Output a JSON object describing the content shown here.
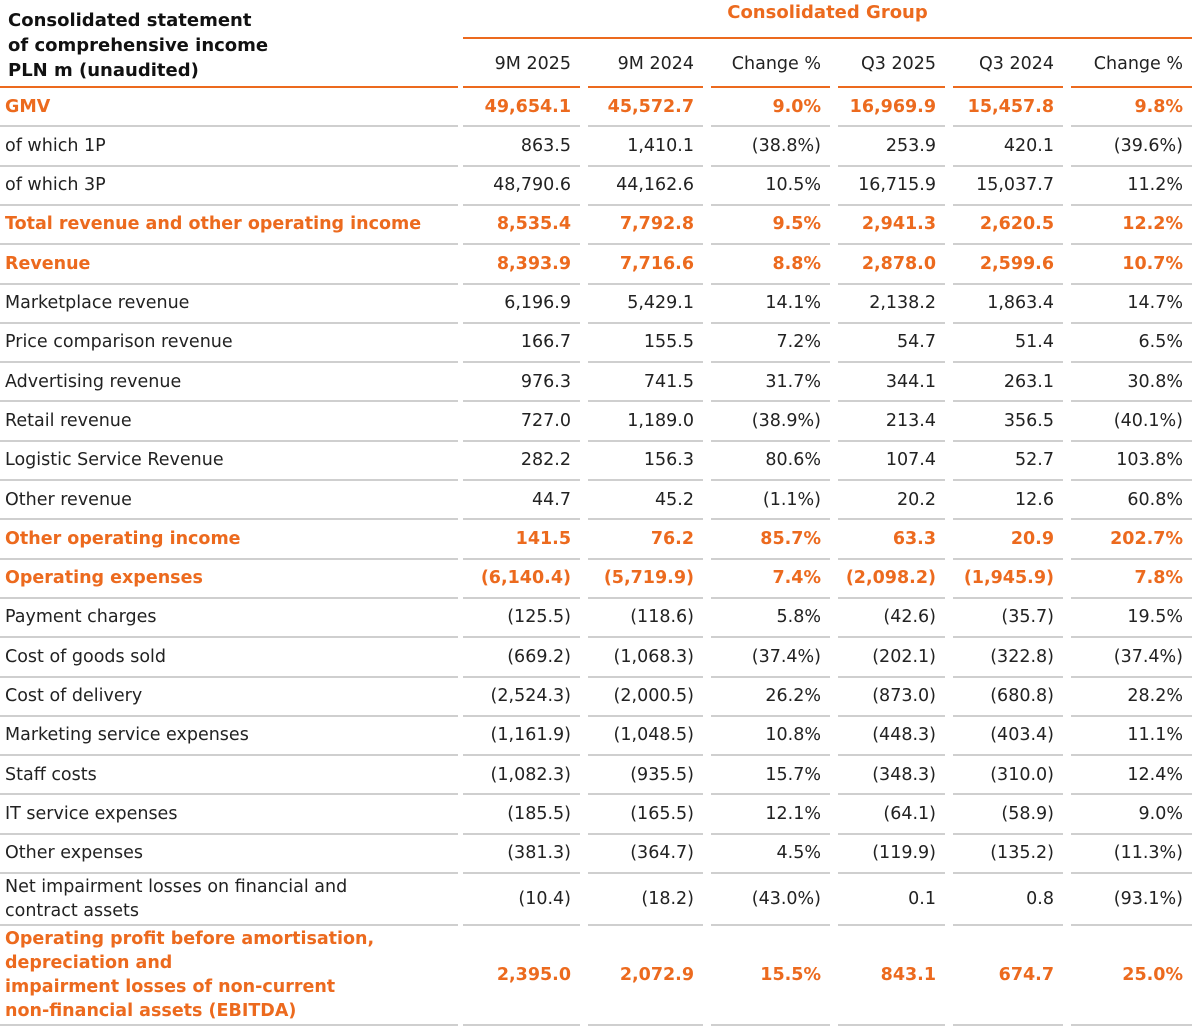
{
  "title": "Consolidated statement\nof comprehensive income\nPLN m (unaudited)",
  "group": "Consolidated Group",
  "columns": [
    "9M 2025",
    "9M 2024",
    "Change %",
    "Q3 2025",
    "Q3 2024",
    "Change %"
  ],
  "rows": [
    {
      "label": "GMV",
      "highlight": true,
      "values": [
        "49,654.1",
        "45,572.7",
        "9.0%",
        "16,969.9",
        "15,457.8",
        "9.8%"
      ]
    },
    {
      "label": "of which 1P",
      "highlight": false,
      "values": [
        "863.5",
        "1,410.1",
        "(38.8%)",
        "253.9",
        "420.1",
        "(39.6%)"
      ]
    },
    {
      "label": "of which 3P",
      "highlight": false,
      "values": [
        "48,790.6",
        "44,162.6",
        "10.5%",
        "16,715.9",
        "15,037.7",
        "11.2%"
      ]
    },
    {
      "label": "Total revenue and other operating income",
      "highlight": true,
      "values": [
        "8,535.4",
        "7,792.8",
        "9.5%",
        "2,941.3",
        "2,620.5",
        "12.2%"
      ]
    },
    {
      "label": "Revenue",
      "highlight": true,
      "values": [
        "8,393.9",
        "7,716.6",
        "8.8%",
        "2,878.0",
        "2,599.6",
        "10.7%"
      ]
    },
    {
      "label": "Marketplace revenue",
      "highlight": false,
      "values": [
        "6,196.9",
        "5,429.1",
        "14.1%",
        "2,138.2",
        "1,863.4",
        "14.7%"
      ]
    },
    {
      "label": "Price comparison revenue",
      "highlight": false,
      "values": [
        "166.7",
        "155.5",
        "7.2%",
        "54.7",
        "51.4",
        "6.5%"
      ]
    },
    {
      "label": "Advertising revenue",
      "highlight": false,
      "values": [
        "976.3",
        "741.5",
        "31.7%",
        "344.1",
        "263.1",
        "30.8%"
      ]
    },
    {
      "label": "Retail revenue",
      "highlight": false,
      "values": [
        "727.0",
        "1,189.0",
        "(38.9%)",
        "213.4",
        "356.5",
        "(40.1%)"
      ]
    },
    {
      "label": "Logistic Service Revenue",
      "highlight": false,
      "values": [
        "282.2",
        "156.3",
        "80.6%",
        "107.4",
        "52.7",
        "103.8%"
      ]
    },
    {
      "label": "Other revenue",
      "highlight": false,
      "values": [
        "44.7",
        "45.2",
        "(1.1%)",
        "20.2",
        "12.6",
        "60.8%"
      ]
    },
    {
      "label": "Other operating income",
      "highlight": true,
      "values": [
        "141.5",
        "76.2",
        "85.7%",
        "63.3",
        "20.9",
        "202.7%"
      ]
    },
    {
      "label": "Operating expenses",
      "highlight": true,
      "values": [
        "(6,140.4)",
        "(5,719.9)",
        "7.4%",
        "(2,098.2)",
        "(1,945.9)",
        "7.8%"
      ]
    },
    {
      "label": "Payment charges",
      "highlight": false,
      "values": [
        "(125.5)",
        "(118.6)",
        "5.8%",
        "(42.6)",
        "(35.7)",
        "19.5%"
      ]
    },
    {
      "label": "Cost of goods sold",
      "highlight": false,
      "values": [
        "(669.2)",
        "(1,068.3)",
        "(37.4%)",
        "(202.1)",
        "(322.8)",
        "(37.4%)"
      ]
    },
    {
      "label": "Cost of delivery",
      "highlight": false,
      "values": [
        "(2,524.3)",
        "(2,000.5)",
        "26.2%",
        "(873.0)",
        "(680.8)",
        "28.2%"
      ]
    },
    {
      "label": "Marketing service expenses",
      "highlight": false,
      "values": [
        "(1,161.9)",
        "(1,048.5)",
        "10.8%",
        "(448.3)",
        "(403.4)",
        "11.1%"
      ]
    },
    {
      "label": "Staff costs",
      "highlight": false,
      "values": [
        "(1,082.3)",
        "(935.5)",
        "15.7%",
        "(348.3)",
        "(310.0)",
        "12.4%"
      ]
    },
    {
      "label": "IT service expenses",
      "highlight": false,
      "values": [
        "(185.5)",
        "(165.5)",
        "12.1%",
        "(64.1)",
        "(58.9)",
        "9.0%"
      ]
    },
    {
      "label": "Other expenses",
      "highlight": false,
      "values": [
        "(381.3)",
        "(364.7)",
        "4.5%",
        "(119.9)",
        "(135.2)",
        "(11.3%)"
      ]
    },
    {
      "label": "Net impairment losses on financial and\ncontract assets",
      "highlight": false,
      "values": [
        "(10.4)",
        "(18.2)",
        "(43.0%)",
        "0.1",
        "0.8",
        "(93.1%)"
      ]
    },
    {
      "label": "Operating profit before amortisation,\ndepreciation and\nimpairment losses of non-current\nnon-financial assets (EBITDA)",
      "highlight": true,
      "values": [
        "2,395.0",
        "2,072.9",
        "15.5%",
        "843.1",
        "674.7",
        "25.0%"
      ]
    }
  ]
}
